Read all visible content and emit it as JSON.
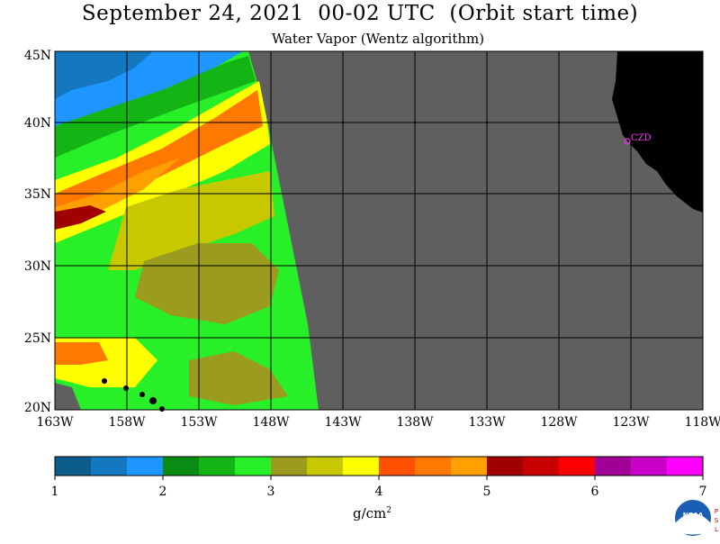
{
  "header": {
    "title": "September 24, 2021  00-02 UTC  (Orbit start time)",
    "subtitle": "Water Vapor (Wentz algorithm)"
  },
  "map": {
    "lat_labels": [
      "45N",
      "40N",
      "35N",
      "30N",
      "25N",
      "20N"
    ],
    "lon_labels": [
      "163W",
      "158W",
      "153W",
      "148W",
      "143W",
      "138W",
      "133W",
      "128W",
      "123W",
      "118W"
    ],
    "station_label": "CZD",
    "nodata_color": "#5f5f5f",
    "land_color": "#000000",
    "station_color": "#ff33ff"
  },
  "colorbar": {
    "tick_labels": [
      "1",
      "2",
      "3",
      "4",
      "5",
      "6",
      "7"
    ],
    "units_base": "g/cm",
    "units_exp": "2",
    "colors": [
      "#0c5c8c",
      "#1478c0",
      "#1e96ff",
      "#0a8c14",
      "#14b414",
      "#28f028",
      "#9b9b20",
      "#c8c800",
      "#ffff00",
      "#ff5000",
      "#ff7800",
      "#ffa000",
      "#a00000",
      "#c80000",
      "#ff0000",
      "#a00096",
      "#c800c8",
      "#ff00ff"
    ]
  },
  "logo": {
    "name": "NOAA",
    "side_text": "PSL"
  }
}
